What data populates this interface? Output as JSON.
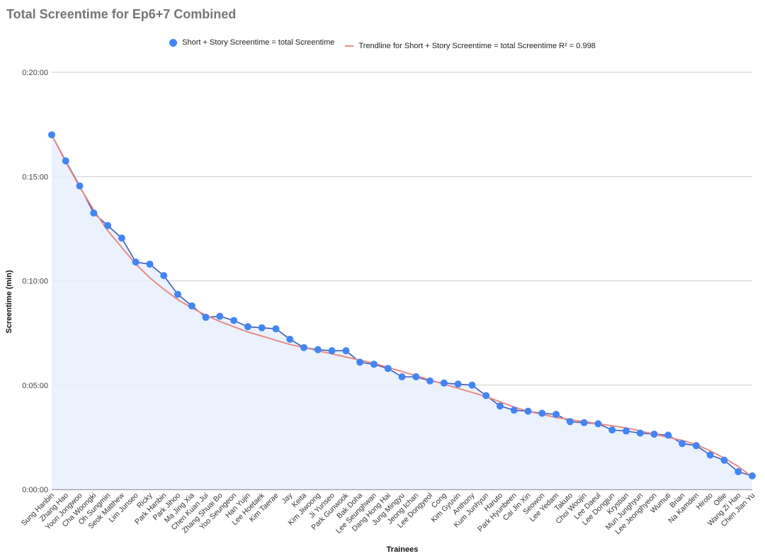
{
  "chart_data": {
    "type": "line",
    "title": "Total Screentime for Ep6+7 Combined",
    "xlabel": "Trainees",
    "ylabel": "Screentime (min)",
    "ylim_minutes": [
      0,
      20
    ],
    "y_ticks": [
      {
        "value": 0,
        "label": "0:00:00"
      },
      {
        "value": 5,
        "label": "0:05:00"
      },
      {
        "value": 10,
        "label": "0:10:00"
      },
      {
        "value": 15,
        "label": "0:15:00"
      },
      {
        "value": 20,
        "label": "0:20:00"
      }
    ],
    "grid": true,
    "legend_position": "top",
    "categories": [
      "Sung Hanbin",
      "Zhang Hao",
      "Yoon Jongwoo",
      "Cha Woongki",
      "Oh Sungmin",
      "Seok Matthew",
      "Lim Junseo",
      "Ricky",
      "Park Hanbin",
      "Park Jihoo",
      "Ma Jing Xia",
      "Chen Kuan Jui",
      "Zhang Shuai Bo",
      "Yoo Seungeon",
      "Han Yujin",
      "Lee Hoetaek",
      "Kim Taerae",
      "Jay",
      "Keita",
      "Kim Jiwoong",
      "Ji Yunseo",
      "Park Gunwook",
      "Bak Doha",
      "Lee Seunghwan",
      "Dang Hong Hai",
      "Jung Mingyu",
      "Jeong Ichan",
      "Lee Dongyeol",
      "Cong",
      "Kim Gyuvin",
      "Anthony",
      "Kum Junhyun",
      "Haruto",
      "Park Hyunbeen",
      "Cai Jin Xin",
      "Seowon",
      "Lee Yedam",
      "Takuto",
      "Choi Woojin",
      "Lee Daeul",
      "Lee Dongjun",
      "Krystian",
      "Mun Junghyun",
      "Lee Jeonghyeon",
      "Wumuti",
      "Brian",
      "Na Kamden",
      "Hiroto",
      "Ollie",
      "Wang Zi Hao",
      "Chen Jian Yu"
    ],
    "series": [
      {
        "name": "Short + Story Screentime = total Screentime",
        "color": "#4285f4",
        "values_minutes": [
          17.0,
          15.75,
          14.55,
          13.25,
          12.65,
          12.05,
          10.9,
          10.8,
          10.25,
          9.35,
          8.8,
          8.25,
          8.3,
          8.1,
          7.8,
          7.75,
          7.7,
          7.2,
          6.8,
          6.7,
          6.65,
          6.65,
          6.1,
          6.0,
          5.8,
          5.4,
          5.4,
          5.2,
          5.1,
          5.05,
          5.0,
          4.5,
          4.0,
          3.8,
          3.75,
          3.65,
          3.6,
          3.25,
          3.2,
          3.15,
          2.85,
          2.8,
          2.7,
          2.65,
          2.6,
          2.2,
          2.1,
          1.65,
          1.4,
          0.85,
          0.65
        ]
      }
    ],
    "trendline": {
      "name": "Trendline for Short + Story Screentime = total Screentime R² = 0.998",
      "color": "#e88a84",
      "values_minutes": [
        17.0,
        15.7,
        14.5,
        13.4,
        12.4,
        11.6,
        10.8,
        10.15,
        9.6,
        9.1,
        8.7,
        8.35,
        8.05,
        7.8,
        7.55,
        7.35,
        7.15,
        6.95,
        6.8,
        6.65,
        6.5,
        6.35,
        6.2,
        6.05,
        5.85,
        5.65,
        5.45,
        5.25,
        5.05,
        4.85,
        4.65,
        4.45,
        4.2,
        3.95,
        3.75,
        3.6,
        3.45,
        3.35,
        3.25,
        3.15,
        3.05,
        2.95,
        2.8,
        2.65,
        2.5,
        2.35,
        2.15,
        1.85,
        1.5,
        1.1,
        0.6
      ]
    }
  }
}
